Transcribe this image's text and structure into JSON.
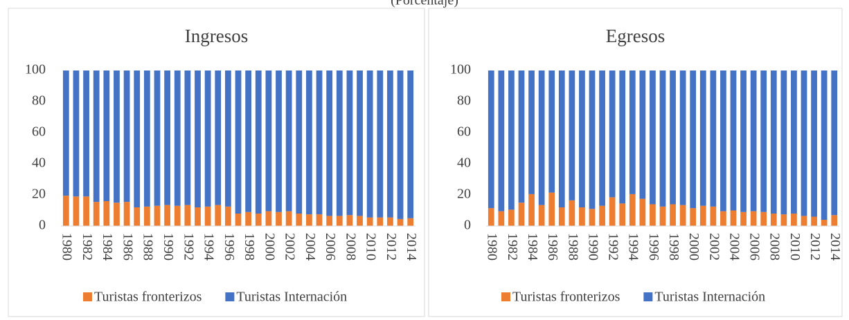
{
  "header": {
    "subtitle": "(Porcentaje)"
  },
  "chart_data": [
    {
      "type": "stacked_bar",
      "title": "Ingresos",
      "categories": [
        "1980",
        null,
        "1982",
        null,
        "1984",
        null,
        "1986",
        null,
        "1988",
        null,
        "1990",
        null,
        "1992",
        null,
        "1994",
        null,
        "1996",
        null,
        "1998",
        null,
        "2000",
        null,
        "2002",
        null,
        "2004",
        null,
        "2006",
        null,
        "2008",
        null,
        "2010",
        null,
        "2012",
        null,
        "2014"
      ],
      "series": [
        {
          "name": "Turistas fronterizos",
          "color": "#ed7d31",
          "values": [
            19.5,
            19,
            19,
            15.5,
            16,
            15,
            15.5,
            12,
            12.5,
            13,
            13.5,
            13,
            13.5,
            12,
            12.5,
            13.5,
            12.5,
            8,
            9,
            8,
            9.5,
            9,
            9.5,
            8,
            7.5,
            7.5,
            6.5,
            6.5,
            7,
            6.5,
            5.5,
            5.5,
            5.5,
            4.5,
            5
          ]
        },
        {
          "name": "Turistas Internación",
          "color": "#4472c4",
          "values": [
            80.5,
            81,
            81,
            84.5,
            84,
            85,
            84.5,
            88,
            87.5,
            87,
            86.5,
            87,
            86.5,
            88,
            87.5,
            86.5,
            87.5,
            92,
            91,
            92,
            90.5,
            91,
            90.5,
            92,
            92.5,
            92.5,
            93.5,
            93.5,
            93,
            93.5,
            94.5,
            94.5,
            94.5,
            95.5,
            95
          ]
        }
      ],
      "ylim": [
        0,
        100
      ],
      "yticks": [
        0,
        20,
        40,
        60,
        80,
        100
      ],
      "grid": false,
      "legend": "bottom"
    },
    {
      "type": "stacked_bar",
      "title": "Egresos",
      "categories": [
        "1980",
        null,
        "1982",
        null,
        "1984",
        null,
        "1986",
        null,
        "1988",
        null,
        "1990",
        null,
        "1992",
        null,
        "1994",
        null,
        "1996",
        null,
        "1998",
        null,
        "2000",
        null,
        "2002",
        null,
        "2004",
        null,
        "2006",
        null,
        "2008",
        null,
        "2010",
        null,
        "2012",
        null,
        "2014"
      ],
      "series": [
        {
          "name": "Turistas fronterizos",
          "color": "#ed7d31",
          "values": [
            11.5,
            9.5,
            10.5,
            15,
            20.5,
            13.5,
            21.5,
            12,
            16.5,
            12,
            11,
            13,
            18.5,
            14.5,
            20.5,
            17.5,
            14,
            12.5,
            14,
            13.5,
            11.5,
            13,
            12.5,
            9.5,
            10,
            9,
            9.5,
            9,
            8,
            7.5,
            8,
            6.5,
            6,
            4,
            7
          ]
        },
        {
          "name": "Turistas Internación",
          "color": "#4472c4",
          "values": [
            88.5,
            90.5,
            89.5,
            85,
            79.5,
            86.5,
            78.5,
            88,
            83.5,
            88,
            89,
            87,
            81.5,
            85.5,
            79.5,
            82.5,
            86,
            87.5,
            86,
            86.5,
            88.5,
            87,
            87.5,
            90.5,
            90,
            91,
            90.5,
            91,
            92,
            92.5,
            92,
            93.5,
            94,
            96,
            93
          ]
        }
      ],
      "ylim": [
        0,
        100
      ],
      "yticks": [
        0,
        20,
        40,
        60,
        80,
        100
      ],
      "grid": false,
      "legend": "bottom"
    }
  ]
}
